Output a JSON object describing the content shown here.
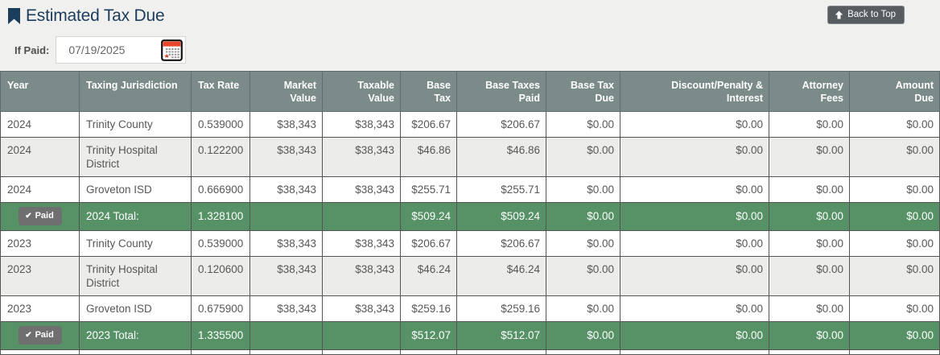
{
  "page": {
    "title": "Estimated Tax Due",
    "back_to_top_label": "Back to Top"
  },
  "if_paid": {
    "label": "If Paid:",
    "value": "07/19/2025",
    "icon": "calendar-icon"
  },
  "colors": {
    "title_navy": "#1d3d5d",
    "header_bg": "#7b8b89",
    "total_row_green": "#579267",
    "badge_gray": "#6f6f6f",
    "back_to_top_gray": "#575c61",
    "alt_row_gray": "#ececeb"
  },
  "table": {
    "columns": [
      {
        "key": "year",
        "label": "Year",
        "align": "left",
        "width": 98
      },
      {
        "key": "taxing_jurisdiction",
        "label": "Taxing Jurisdiction",
        "align": "left",
        "width": 139
      },
      {
        "key": "tax_rate",
        "label": "Tax Rate",
        "align": "left",
        "width": 73
      },
      {
        "key": "market_value",
        "label": "Market\nValue",
        "align": "right",
        "width": 90
      },
      {
        "key": "taxable_value",
        "label": "Taxable\nValue",
        "align": "right",
        "width": 97
      },
      {
        "key": "base_tax",
        "label": "Base\nTax",
        "align": "right",
        "width": 70
      },
      {
        "key": "base_taxes_paid",
        "label": "Base Taxes\nPaid",
        "align": "right",
        "width": 111
      },
      {
        "key": "base_tax_due",
        "label": "Base Tax\nDue",
        "align": "right",
        "width": 92
      },
      {
        "key": "discount_penalty_interest",
        "label": "Discount/Penalty &\nInterest",
        "align": "right",
        "width": 185
      },
      {
        "key": "attorney_fees",
        "label": "Attorney\nFees",
        "align": "right",
        "width": 100
      },
      {
        "key": "amount_due",
        "label": "Amount\nDue",
        "align": "right",
        "width": 112
      }
    ],
    "rows": [
      {
        "type": "data",
        "shade": "white",
        "cells": [
          "2024",
          "Trinity County",
          "0.539000",
          "$38,343",
          "$38,343",
          "$206.67",
          "$206.67",
          "$0.00",
          "$0.00",
          "$0.00",
          "$0.00"
        ]
      },
      {
        "type": "data",
        "shade": "gray",
        "cells": [
          "2024",
          "Trinity Hospital District",
          "0.122200",
          "$38,343",
          "$38,343",
          "$46.86",
          "$46.86",
          "$0.00",
          "$0.00",
          "$0.00",
          "$0.00"
        ]
      },
      {
        "type": "data",
        "shade": "white",
        "cells": [
          "2024",
          "Groveton ISD",
          "0.666900",
          "$38,343",
          "$38,343",
          "$255.71",
          "$255.71",
          "$0.00",
          "$0.00",
          "$0.00",
          "$0.00"
        ]
      },
      {
        "type": "total",
        "badge": "Paid",
        "cells": [
          "",
          "2024 Total:",
          "1.328100",
          "",
          "",
          "$509.24",
          "$509.24",
          "$0.00",
          "$0.00",
          "$0.00",
          "$0.00"
        ]
      },
      {
        "type": "data",
        "shade": "white",
        "cells": [
          "2023",
          "Trinity County",
          "0.539000",
          "$38,343",
          "$38,343",
          "$206.67",
          "$206.67",
          "$0.00",
          "$0.00",
          "$0.00",
          "$0.00"
        ]
      },
      {
        "type": "data",
        "shade": "gray",
        "cells": [
          "2023",
          "Trinity Hospital District",
          "0.120600",
          "$38,343",
          "$38,343",
          "$46.24",
          "$46.24",
          "$0.00",
          "$0.00",
          "$0.00",
          "$0.00"
        ]
      },
      {
        "type": "data",
        "shade": "white",
        "cells": [
          "2023",
          "Groveton ISD",
          "0.675900",
          "$38,343",
          "$38,343",
          "$259.16",
          "$259.16",
          "$0.00",
          "$0.00",
          "$0.00",
          "$0.00"
        ]
      },
      {
        "type": "total",
        "badge": "Paid",
        "cells": [
          "",
          "2023 Total:",
          "1.335500",
          "",
          "",
          "$512.07",
          "$512.07",
          "$0.00",
          "$0.00",
          "$0.00",
          "$0.00"
        ]
      },
      {
        "type": "partial",
        "shade": "white",
        "cells": [
          "",
          "",
          "",
          "",
          "",
          "",
          "",
          "",
          "",
          "",
          ""
        ]
      }
    ]
  }
}
